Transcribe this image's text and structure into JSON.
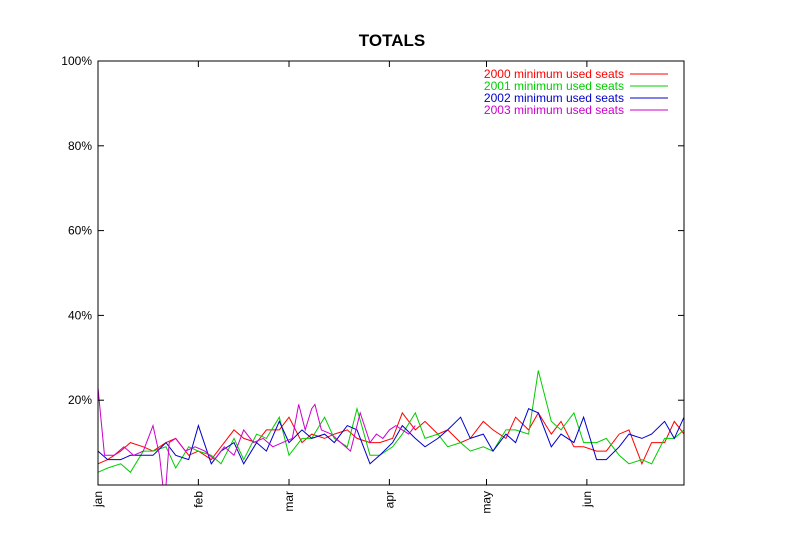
{
  "chart_data": {
    "type": "line",
    "title": "TOTALS",
    "xlabel": "",
    "ylabel": "",
    "ylim": [
      0,
      100
    ],
    "xlim": [
      0,
      181
    ],
    "grid": false,
    "legend_position": "top-right",
    "y_ticks": [
      {
        "value": 20,
        "label": "20%"
      },
      {
        "value": 40,
        "label": "40%"
      },
      {
        "value": 60,
        "label": "60%"
      },
      {
        "value": 80,
        "label": "80%"
      },
      {
        "value": 100,
        "label": "100%"
      }
    ],
    "x_ticks": [
      {
        "value": 0,
        "label": "jan"
      },
      {
        "value": 31,
        "label": "feb"
      },
      {
        "value": 59,
        "label": "mar"
      },
      {
        "value": 90,
        "label": "apr"
      },
      {
        "value": 120,
        "label": "may"
      },
      {
        "value": 151,
        "label": "jun"
      }
    ],
    "series": [
      {
        "name": "2000 minimum used seats",
        "color": "#ff0000",
        "x": [
          0,
          3,
          7,
          10,
          14,
          17,
          21,
          24,
          28,
          31,
          35,
          38,
          42,
          45,
          49,
          52,
          56,
          59,
          63,
          66,
          70,
          73,
          77,
          80,
          84,
          87,
          91,
          94,
          98,
          101,
          105,
          108,
          112,
          115,
          119,
          122,
          126,
          129,
          133,
          136,
          140,
          143,
          147,
          150,
          154,
          157,
          161,
          164,
          168,
          171,
          175,
          178,
          181
        ],
        "y": [
          5,
          6,
          8,
          10,
          9,
          8,
          10,
          11,
          7,
          8,
          6,
          9,
          13,
          11,
          10,
          13,
          13,
          16,
          10,
          12,
          11,
          12,
          13,
          11,
          10,
          10,
          11,
          17,
          13,
          15,
          12,
          13,
          10,
          11,
          15,
          13,
          11,
          16,
          13,
          17,
          12,
          15,
          9,
          9,
          8,
          8,
          12,
          13,
          5,
          10,
          10,
          15,
          12
        ]
      },
      {
        "name": "2001 minimum used seats",
        "color": "#00cc00",
        "x": [
          0,
          3,
          7,
          10,
          14,
          17,
          21,
          24,
          28,
          31,
          35,
          38,
          42,
          45,
          49,
          52,
          56,
          59,
          63,
          66,
          70,
          73,
          77,
          80,
          84,
          87,
          91,
          94,
          98,
          101,
          105,
          108,
          112,
          115,
          119,
          122,
          126,
          129,
          133,
          136,
          140,
          143,
          147,
          150,
          154,
          157,
          161,
          164,
          168,
          171,
          175,
          178,
          181
        ],
        "y": [
          3,
          4,
          5,
          3,
          8,
          8,
          9,
          4,
          9,
          8,
          7,
          5,
          11,
          6,
          12,
          11,
          16,
          7,
          11,
          11,
          16,
          11,
          9,
          18,
          7,
          7,
          9,
          12,
          17,
          11,
          12,
          9,
          10,
          8,
          9,
          8,
          13,
          13,
          12,
          27,
          15,
          13,
          17,
          10,
          10,
          11,
          7,
          5,
          6,
          5,
          11,
          11,
          13
        ]
      },
      {
        "name": "2002 minimum used seats",
        "color": "#0000cc",
        "x": [
          0,
          3,
          7,
          10,
          14,
          17,
          21,
          24,
          28,
          31,
          35,
          38,
          42,
          45,
          49,
          52,
          56,
          59,
          63,
          66,
          70,
          73,
          77,
          80,
          84,
          87,
          91,
          94,
          98,
          101,
          105,
          108,
          112,
          115,
          119,
          122,
          126,
          129,
          133,
          136,
          140,
          143,
          147,
          150,
          154,
          157,
          161,
          164,
          168,
          171,
          175,
          178,
          181
        ],
        "y": [
          8,
          6,
          6,
          7,
          7,
          7,
          10,
          7,
          6,
          14,
          5,
          8,
          10,
          5,
          10,
          8,
          15,
          10,
          13,
          11,
          12,
          10,
          14,
          13,
          5,
          7,
          10,
          14,
          11,
          9,
          11,
          13,
          16,
          11,
          12,
          8,
          12,
          10,
          18,
          17,
          9,
          12,
          10,
          16,
          6,
          6,
          9,
          12,
          11,
          12,
          15,
          11,
          16
        ]
      },
      {
        "name": "2003 minimum used seats",
        "color": "#cc00cc",
        "x": [
          0,
          1,
          2,
          5,
          8,
          11,
          14,
          17,
          19,
          20,
          21,
          22,
          24,
          27,
          30,
          33,
          36,
          39,
          42,
          45,
          48,
          51,
          54,
          57,
          60,
          62,
          64,
          66,
          67,
          69,
          72,
          75,
          78,
          81,
          84,
          86,
          88,
          90,
          92,
          94,
          96,
          98
        ],
        "y": [
          23,
          15,
          7,
          7,
          9,
          7,
          8,
          14,
          7,
          0,
          0,
          10,
          11,
          8,
          9,
          8,
          6,
          9,
          7,
          13,
          10,
          11,
          9,
          10,
          11,
          19,
          13,
          18,
          19,
          13,
          12,
          10,
          8,
          17,
          10,
          12,
          11,
          13,
          14,
          13,
          12,
          14
        ]
      }
    ]
  }
}
